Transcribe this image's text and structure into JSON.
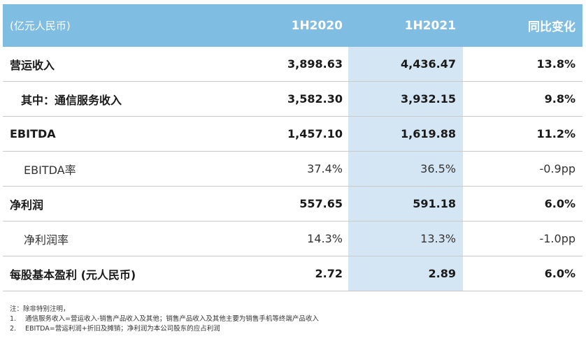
{
  "header": {
    "unit": "(亿元人民币)",
    "col1": "1H2020",
    "col2": "1H2021",
    "col3": "同比变化"
  },
  "rows": [
    {
      "label": "营运收入",
      "v1": "3,898.63",
      "v2": "4,436.47",
      "v3": "13.8%",
      "style": "bold",
      "indent": ""
    },
    {
      "label": "其中：通信服务收入",
      "v1": "3,582.30",
      "v2": "3,932.15",
      "v3": "9.8%",
      "style": "bold",
      "indent": "indent1"
    },
    {
      "label": "EBITDA",
      "v1": "1,457.10",
      "v2": "1,619.88",
      "v3": "11.2%",
      "style": "bold",
      "indent": ""
    },
    {
      "label": "EBITDA率",
      "v1": "37.4%",
      "v2": "36.5%",
      "v3": "-0.9pp",
      "style": "norm",
      "indent": "indent2"
    },
    {
      "label": "净利润",
      "v1": "557.65",
      "v2": "591.18",
      "v3": "6.0%",
      "style": "bold",
      "indent": ""
    },
    {
      "label": "净利润率",
      "v1": "14.3%",
      "v2": "13.3%",
      "v3": "-1.0pp",
      "style": "norm",
      "indent": "indent2"
    },
    {
      "label": "每股基本盈利 (元人民币)",
      "v1": "2.72",
      "v2": "2.89",
      "v3": "6.0%",
      "style": "bold",
      "indent": ""
    }
  ],
  "notes": {
    "title": "注：除非特别注明，",
    "items": [
      {
        "num": "1.",
        "text": "通信服务收入=营运收入-销售产品收入及其他；销售产品收入及其他主要为销售手机等终端产品收入"
      },
      {
        "num": "2.",
        "text": "EBITDA=营运利润+折旧及摊销；净利润为本公司股东的应占利润"
      }
    ]
  }
}
